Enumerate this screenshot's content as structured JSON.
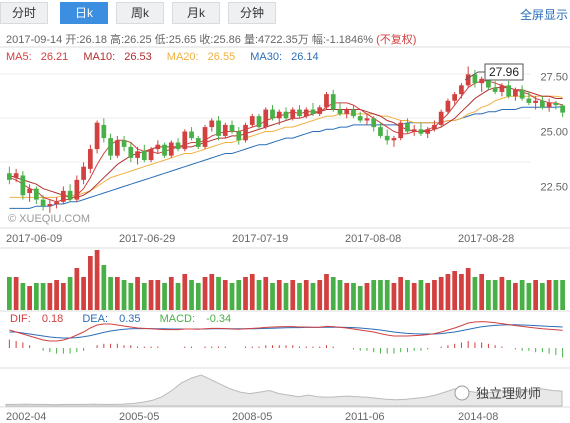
{
  "tabs": [
    {
      "label": "分时",
      "active": false
    },
    {
      "label": "日k",
      "active": true
    },
    {
      "label": "周k",
      "active": false
    },
    {
      "label": "月k",
      "active": false
    },
    {
      "label": "分钟",
      "active": false
    }
  ],
  "fullscreen_label": "全屏显示",
  "info": {
    "date": "2017-09-14",
    "open_label": "开:",
    "open": "26.18",
    "high_label": "高:",
    "high": "26.25",
    "low_label": "低:",
    "low": "25.65",
    "close_label": "收:",
    "close": "25.86",
    "volume_label": "量:",
    "volume": "4722.35万",
    "change_label": "幅:",
    "change": "-1.1846%",
    "adjust": "(不复权)"
  },
  "ma": [
    {
      "label": "MA5:",
      "value": "26.21",
      "color": "#d24040"
    },
    {
      "label": "MA10:",
      "value": "26.53",
      "color": "#b03030"
    },
    {
      "label": "MA20:",
      "value": "26.55",
      "color": "#f0b040"
    },
    {
      "label": "MA30:",
      "value": "26.14",
      "color": "#2a6eb8"
    }
  ],
  "macd": [
    {
      "label": "DIF:",
      "value": "0.18",
      "color": "#d24040"
    },
    {
      "label": "DEA:",
      "value": "0.35",
      "color": "#2a6eb8"
    },
    {
      "label": "MACD:",
      "value": "-0.34",
      "color": "#49b048"
    }
  ],
  "watermark": "© XUEQIU.COM",
  "price_tag": "27.96",
  "brand": "独立理财师",
  "colors": {
    "up": "#d24040",
    "down": "#49b048",
    "ma5": "#d24040",
    "ma10": "#b03030",
    "ma20": "#f0b040",
    "ma30": "#2a6eb8",
    "axis": "#ccc"
  },
  "chart_data": {
    "type": "candlestick",
    "price_axis": {
      "ticks": [
        "27.50",
        "25.00",
        "22.50"
      ],
      "ylim": [
        20.7,
        28.8
      ]
    },
    "x_tick_labels": [
      "2017-06-09",
      "2017-06-29",
      "2017-07-19",
      "2017-08-08",
      "2017-08-28"
    ],
    "candles": [
      [
        23.1,
        23.4,
        22.6,
        22.8
      ],
      [
        22.9,
        23.3,
        22.7,
        23.1
      ],
      [
        23.0,
        23.2,
        21.9,
        22.1
      ],
      [
        22.2,
        22.6,
        21.8,
        22.4
      ],
      [
        22.4,
        22.5,
        21.7,
        21.9
      ],
      [
        21.9,
        22.1,
        21.4,
        21.6
      ],
      [
        21.6,
        21.9,
        21.3,
        21.7
      ],
      [
        21.7,
        22.0,
        21.5,
        21.8
      ],
      [
        21.8,
        22.5,
        21.7,
        22.3
      ],
      [
        22.3,
        22.6,
        21.8,
        21.9
      ],
      [
        21.9,
        23.0,
        21.8,
        22.8
      ],
      [
        22.8,
        23.6,
        22.6,
        23.4
      ],
      [
        23.3,
        24.4,
        23.1,
        24.2
      ],
      [
        24.2,
        25.5,
        24.0,
        25.4
      ],
      [
        25.3,
        25.6,
        24.5,
        24.7
      ],
      [
        24.7,
        24.9,
        23.7,
        23.9
      ],
      [
        23.9,
        24.8,
        23.8,
        24.6
      ],
      [
        24.6,
        24.8,
        24.1,
        24.3
      ],
      [
        24.3,
        24.5,
        23.6,
        23.8
      ],
      [
        23.8,
        24.3,
        23.5,
        24.1
      ],
      [
        24.1,
        24.4,
        23.6,
        23.7
      ],
      [
        23.7,
        24.3,
        23.6,
        24.2
      ],
      [
        24.2,
        24.6,
        24.0,
        24.4
      ],
      [
        24.4,
        24.5,
        23.8,
        23.9
      ],
      [
        23.9,
        24.6,
        23.8,
        24.5
      ],
      [
        24.5,
        24.7,
        24.1,
        24.2
      ],
      [
        24.2,
        25.1,
        24.1,
        25.0
      ],
      [
        25.0,
        25.2,
        24.6,
        24.7
      ],
      [
        24.7,
        24.8,
        24.2,
        24.3
      ],
      [
        24.3,
        25.3,
        24.2,
        25.2
      ],
      [
        25.2,
        25.6,
        25.0,
        25.5
      ],
      [
        25.5,
        25.7,
        24.6,
        24.8
      ],
      [
        24.8,
        25.4,
        24.7,
        25.3
      ],
      [
        25.3,
        25.5,
        24.9,
        25.0
      ],
      [
        25.0,
        25.2,
        24.4,
        24.6
      ],
      [
        24.6,
        25.4,
        24.5,
        25.3
      ],
      [
        25.3,
        25.8,
        25.2,
        25.7
      ],
      [
        25.7,
        25.8,
        25.1,
        25.2
      ],
      [
        25.2,
        26.1,
        25.1,
        26.0
      ],
      [
        26.0,
        26.2,
        25.5,
        25.6
      ],
      [
        25.6,
        26.0,
        25.3,
        25.9
      ],
      [
        25.9,
        26.1,
        25.5,
        25.6
      ],
      [
        25.6,
        26.1,
        25.5,
        26.0
      ],
      [
        26.0,
        26.2,
        25.6,
        25.7
      ],
      [
        25.7,
        26.1,
        25.6,
        26.0
      ],
      [
        26.0,
        26.3,
        25.7,
        25.8
      ],
      [
        25.8,
        26.2,
        25.7,
        26.1
      ],
      [
        26.1,
        26.8,
        26.0,
        26.7
      ],
      [
        26.7,
        26.9,
        25.9,
        26.0
      ],
      [
        26.0,
        26.3,
        25.7,
        25.8
      ],
      [
        25.8,
        26.1,
        25.6,
        26.0
      ],
      [
        26.0,
        26.2,
        25.6,
        25.7
      ],
      [
        25.7,
        25.9,
        25.4,
        25.5
      ],
      [
        25.5,
        25.8,
        25.3,
        25.6
      ],
      [
        25.6,
        25.7,
        25.0,
        25.2
      ],
      [
        25.2,
        25.4,
        24.7,
        24.8
      ],
      [
        24.8,
        25.1,
        24.4,
        24.6
      ],
      [
        24.6,
        24.8,
        24.3,
        24.7
      ],
      [
        24.7,
        25.5,
        24.6,
        25.4
      ],
      [
        25.4,
        25.6,
        24.9,
        25.0
      ],
      [
        25.0,
        25.3,
        24.8,
        25.1
      ],
      [
        25.1,
        25.4,
        24.8,
        24.9
      ],
      [
        24.9,
        25.2,
        24.7,
        25.1
      ],
      [
        25.1,
        25.5,
        25.0,
        25.3
      ],
      [
        25.3,
        26.0,
        25.2,
        25.9
      ],
      [
        25.9,
        26.5,
        25.8,
        26.4
      ],
      [
        26.4,
        26.8,
        26.2,
        26.7
      ],
      [
        26.7,
        27.2,
        26.5,
        27.1
      ],
      [
        27.1,
        27.96,
        27.0,
        27.6
      ],
      [
        27.6,
        27.8,
        27.0,
        27.2
      ],
      [
        27.2,
        27.5,
        26.8,
        27.4
      ],
      [
        27.4,
        27.6,
        26.9,
        27.0
      ],
      [
        27.0,
        27.3,
        26.7,
        26.8
      ],
      [
        26.8,
        27.2,
        26.6,
        27.1
      ],
      [
        27.1,
        27.3,
        26.5,
        26.6
      ],
      [
        26.6,
        27.0,
        26.4,
        26.9
      ],
      [
        26.9,
        27.1,
        26.4,
        26.5
      ],
      [
        26.5,
        26.8,
        26.2,
        26.3
      ],
      [
        26.3,
        26.6,
        26.0,
        26.4
      ],
      [
        26.4,
        26.6,
        26.0,
        26.1
      ],
      [
        26.1,
        26.5,
        25.9,
        26.3
      ],
      [
        26.3,
        26.4,
        26.0,
        26.2
      ],
      [
        26.18,
        26.25,
        25.65,
        25.86
      ]
    ],
    "volume": [
      0.55,
      0.55,
      0.45,
      0.4,
      0.45,
      0.45,
      0.45,
      0.5,
      0.45,
      0.55,
      0.7,
      0.55,
      0.9,
      1.0,
      0.75,
      0.55,
      0.55,
      0.5,
      0.45,
      0.55,
      0.45,
      0.5,
      0.5,
      0.45,
      0.55,
      0.45,
      0.6,
      0.5,
      0.45,
      0.55,
      0.6,
      0.55,
      0.5,
      0.45,
      0.5,
      0.55,
      0.6,
      0.5,
      0.55,
      0.45,
      0.5,
      0.45,
      0.5,
      0.45,
      0.5,
      0.45,
      0.5,
      0.6,
      0.55,
      0.5,
      0.45,
      0.45,
      0.4,
      0.45,
      0.5,
      0.5,
      0.5,
      0.45,
      0.55,
      0.5,
      0.45,
      0.5,
      0.45,
      0.5,
      0.55,
      0.6,
      0.65,
      0.6,
      0.7,
      0.55,
      0.6,
      0.5,
      0.5,
      0.55,
      0.5,
      0.45,
      0.5,
      0.45,
      0.5,
      0.45,
      0.5,
      0.5,
      0.5
    ],
    "ma5_values": [
      22.9,
      22.8,
      22.6,
      22.4,
      22.3,
      22.0,
      21.9,
      21.8,
      21.9,
      21.9,
      22.1,
      22.4,
      22.9,
      23.5,
      24.0,
      24.4,
      24.6,
      24.6,
      24.5,
      24.2,
      24.1,
      24.1,
      24.0,
      24.1,
      24.2,
      24.3,
      24.4,
      24.5,
      24.5,
      24.6,
      24.8,
      24.9,
      25.0,
      25.0,
      25.0,
      25.1,
      25.2,
      25.3,
      25.5,
      25.6,
      25.7,
      25.8,
      25.9,
      25.8,
      25.9,
      25.9,
      25.9,
      26.1,
      26.3,
      26.3,
      26.3,
      26.2,
      26.0,
      25.8,
      25.6,
      25.4,
      25.2,
      25.0,
      24.9,
      24.9,
      25.0,
      25.0,
      25.1,
      25.2,
      25.5,
      25.8,
      26.2,
      26.6,
      27.0,
      27.2,
      27.3,
      27.3,
      27.2,
      27.1,
      27.0,
      26.9,
      26.8,
      26.7,
      26.5,
      26.4,
      26.3,
      26.3,
      26.2
    ],
    "ma10_values": [
      23.0,
      22.9,
      22.8,
      22.7,
      22.6,
      22.4,
      22.3,
      22.2,
      22.1,
      22.0,
      22.0,
      22.1,
      22.3,
      22.6,
      22.9,
      23.2,
      23.5,
      23.7,
      23.9,
      24.0,
      24.1,
      24.2,
      24.3,
      24.3,
      24.3,
      24.3,
      24.3,
      24.3,
      24.4,
      24.5,
      24.6,
      24.7,
      24.7,
      24.8,
      24.8,
      24.9,
      25.0,
      25.1,
      25.2,
      25.3,
      25.4,
      25.5,
      25.6,
      25.6,
      25.7,
      25.8,
      25.9,
      26.0,
      26.0,
      26.0,
      26.0,
      26.0,
      26.0,
      25.9,
      25.8,
      25.7,
      25.5,
      25.4,
      25.2,
      25.1,
      25.0,
      25.0,
      25.0,
      25.1,
      25.2,
      25.4,
      25.6,
      25.9,
      26.2,
      26.5,
      26.7,
      26.9,
      27.0,
      27.0,
      27.0,
      26.9,
      26.9,
      26.8,
      26.7,
      26.6,
      26.6,
      26.5,
      26.5
    ],
    "ma20_values": [
      22.0,
      22.0,
      22.0,
      22.0,
      22.0,
      22.0,
      22.0,
      22.0,
      22.1,
      22.1,
      22.1,
      22.2,
      22.3,
      22.5,
      22.7,
      22.9,
      23.0,
      23.1,
      23.2,
      23.3,
      23.4,
      23.5,
      23.6,
      23.7,
      23.8,
      23.9,
      24.0,
      24.0,
      24.1,
      24.2,
      24.3,
      24.4,
      24.5,
      24.5,
      24.6,
      24.7,
      24.8,
      24.9,
      25.0,
      25.0,
      25.1,
      25.2,
      25.2,
      25.3,
      25.4,
      25.5,
      25.6,
      25.7,
      25.7,
      25.8,
      25.8,
      25.8,
      25.8,
      25.8,
      25.8,
      25.7,
      25.7,
      25.6,
      25.5,
      25.5,
      25.4,
      25.4,
      25.4,
      25.4,
      25.4,
      25.5,
      25.5,
      25.6,
      25.8,
      25.9,
      26.1,
      26.2,
      26.4,
      26.5,
      26.6,
      26.6,
      26.6,
      26.6,
      26.6,
      26.6,
      26.6,
      26.6,
      26.55
    ],
    "ma30_values": [
      21.5,
      21.5,
      21.5,
      21.5,
      21.6,
      21.6,
      21.6,
      21.7,
      21.7,
      21.8,
      21.8,
      21.9,
      22.0,
      22.1,
      22.2,
      22.3,
      22.4,
      22.5,
      22.6,
      22.7,
      22.8,
      22.9,
      23.0,
      23.1,
      23.2,
      23.3,
      23.4,
      23.5,
      23.6,
      23.7,
      23.8,
      23.9,
      24.0,
      24.0,
      24.1,
      24.2,
      24.3,
      24.4,
      24.4,
      24.5,
      24.6,
      24.7,
      24.7,
      24.8,
      24.9,
      25.0,
      25.0,
      25.1,
      25.1,
      25.2,
      25.2,
      25.3,
      25.3,
      25.3,
      25.3,
      25.3,
      25.3,
      25.3,
      25.3,
      25.4,
      25.4,
      25.4,
      25.4,
      25.4,
      25.4,
      25.5,
      25.5,
      25.6,
      25.7,
      25.8,
      25.8,
      25.9,
      25.9,
      26.0,
      26.0,
      26.0,
      26.1,
      26.1,
      26.1,
      26.1,
      26.1,
      26.1,
      26.14
    ],
    "macd_hist": [
      0.3,
      0.25,
      0.2,
      0.1,
      0.0,
      -0.1,
      -0.15,
      -0.2,
      -0.2,
      -0.2,
      -0.15,
      -0.1,
      0.0,
      0.1,
      0.15,
      0.15,
      0.15,
      0.1,
      0.1,
      0.05,
      0.05,
      0.05,
      0.05,
      0.0,
      0.0,
      0.0,
      0.05,
      0.05,
      0.0,
      0.05,
      0.05,
      0.05,
      0.05,
      0.0,
      0.0,
      0.05,
      0.05,
      0.05,
      0.1,
      0.1,
      0.1,
      0.1,
      0.1,
      0.05,
      0.05,
      0.05,
      0.05,
      0.1,
      0.05,
      0.0,
      0.0,
      -0.05,
      -0.1,
      -0.1,
      -0.15,
      -0.2,
      -0.2,
      -0.2,
      -0.15,
      -0.15,
      -0.1,
      -0.1,
      -0.05,
      0.0,
      0.05,
      0.1,
      0.15,
      0.2,
      0.25,
      0.2,
      0.2,
      0.15,
      0.1,
      0.05,
      0.0,
      -0.05,
      -0.1,
      -0.1,
      -0.15,
      -0.15,
      -0.2,
      -0.25,
      -0.34
    ],
    "macd_dif": [
      0.2,
      0.1,
      0.0,
      -0.1,
      -0.2,
      -0.3,
      -0.35,
      -0.35,
      -0.3,
      -0.2,
      -0.05,
      0.1,
      0.3,
      0.45,
      0.5,
      0.5,
      0.45,
      0.4,
      0.35,
      0.3,
      0.28,
      0.26,
      0.24,
      0.22,
      0.22,
      0.22,
      0.25,
      0.25,
      0.24,
      0.26,
      0.28,
      0.28,
      0.27,
      0.25,
      0.24,
      0.26,
      0.28,
      0.3,
      0.33,
      0.35,
      0.36,
      0.37,
      0.37,
      0.35,
      0.35,
      0.34,
      0.34,
      0.38,
      0.37,
      0.33,
      0.3,
      0.25,
      0.2,
      0.15,
      0.1,
      0.02,
      -0.05,
      -0.1,
      -0.1,
      -0.1,
      -0.08,
      -0.06,
      -0.03,
      0.02,
      0.1,
      0.2,
      0.3,
      0.42,
      0.55,
      0.6,
      0.62,
      0.6,
      0.56,
      0.52,
      0.47,
      0.42,
      0.38,
      0.34,
      0.3,
      0.26,
      0.24,
      0.21,
      0.18
    ],
    "macd_dea": [
      0.1,
      0.1,
      0.05,
      0.0,
      -0.05,
      -0.1,
      -0.15,
      -0.18,
      -0.2,
      -0.2,
      -0.18,
      -0.14,
      -0.08,
      0.0,
      0.08,
      0.15,
      0.2,
      0.24,
      0.26,
      0.27,
      0.27,
      0.27,
      0.26,
      0.26,
      0.25,
      0.25,
      0.25,
      0.25,
      0.25,
      0.25,
      0.26,
      0.26,
      0.26,
      0.26,
      0.26,
      0.26,
      0.26,
      0.27,
      0.28,
      0.29,
      0.3,
      0.31,
      0.32,
      0.32,
      0.33,
      0.33,
      0.33,
      0.34,
      0.34,
      0.34,
      0.33,
      0.32,
      0.3,
      0.27,
      0.24,
      0.2,
      0.15,
      0.1,
      0.06,
      0.03,
      0.01,
      0.0,
      0.0,
      0.0,
      0.02,
      0.06,
      0.1,
      0.16,
      0.23,
      0.3,
      0.36,
      0.4,
      0.43,
      0.45,
      0.46,
      0.46,
      0.45,
      0.44,
      0.42,
      0.4,
      0.38,
      0.37,
      0.35
    ],
    "overview_x_labels": [
      "2002-04",
      "2005-05",
      "2008-05",
      "2011-06",
      "2014-08"
    ],
    "overview_values": [
      0.05,
      0.05,
      0.06,
      0.05,
      0.05,
      0.04,
      0.05,
      0.05,
      0.05,
      0.06,
      0.05,
      0.05,
      0.06,
      0.08,
      0.12,
      0.18,
      0.3,
      0.5,
      0.75,
      0.9,
      1.0,
      0.85,
      0.7,
      0.55,
      0.45,
      0.4,
      0.45,
      0.5,
      0.4,
      0.35,
      0.3,
      0.35,
      0.3,
      0.28,
      0.3,
      0.32,
      0.3,
      0.28,
      0.25,
      0.22,
      0.2,
      0.22,
      0.25,
      0.28,
      0.35,
      0.45,
      0.55,
      0.5,
      0.45,
      0.42,
      0.45,
      0.5,
      0.48,
      0.45,
      0.5,
      0.55,
      0.5,
      0.48
    ]
  }
}
